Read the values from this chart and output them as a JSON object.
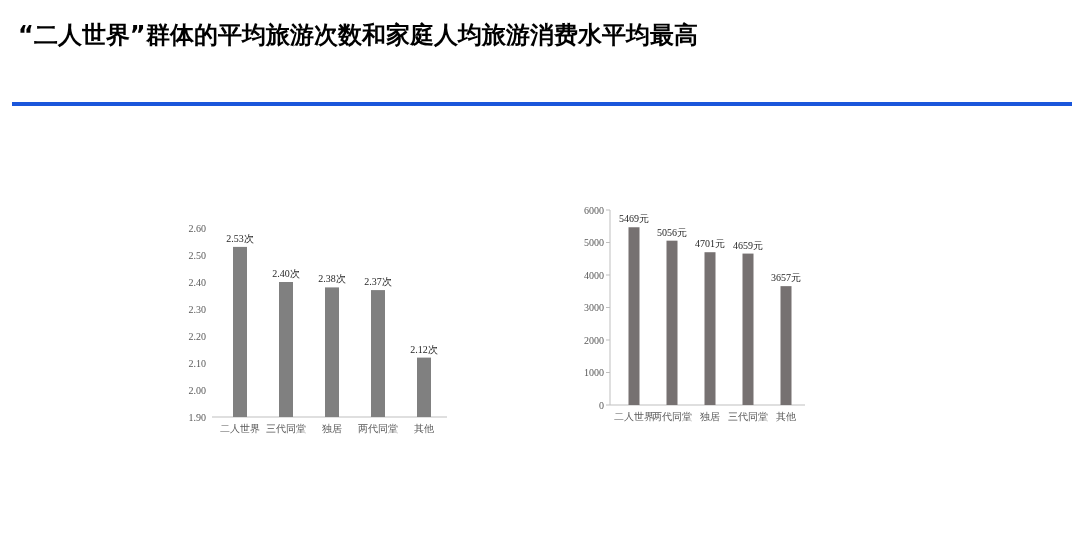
{
  "chart_data": [
    {
      "type": "bar",
      "title": "“二人世界”群体的平均旅游次数和家庭人均旅游消费水平均最高",
      "categories": [
        "二人世界",
        "三代同堂",
        "独居",
        "两代同堂",
        "其他"
      ],
      "values": [
        2.53,
        2.4,
        2.38,
        2.37,
        2.12
      ],
      "value_labels": [
        "2.53次",
        "2.40次",
        "2.38次",
        "2.37次",
        "2.12次"
      ],
      "color": "#808080",
      "ylim": [
        1.9,
        2.6
      ],
      "yticks": [
        {
          "value": 1.9,
          "label": "1.90"
        },
        {
          "value": 2.0,
          "label": "2.00"
        },
        {
          "value": 2.1,
          "label": "2.10"
        },
        {
          "value": 2.2,
          "label": "2.20"
        },
        {
          "value": 2.3,
          "label": "2.30"
        },
        {
          "value": 2.4,
          "label": "2.40"
        },
        {
          "value": 2.5,
          "label": "2.50"
        },
        {
          "value": 2.6,
          "label": "2.60"
        }
      ]
    },
    {
      "type": "bar",
      "categories": [
        "二人世界",
        "两代同堂",
        "独居",
        "三代同堂",
        "其他"
      ],
      "values": [
        5469,
        5056,
        4701,
        4659,
        3657
      ],
      "value_labels": [
        "5469元",
        "5056元",
        "4701元",
        "4659元",
        "3657元"
      ],
      "color": "#767171",
      "ylim": [
        0,
        6000
      ],
      "yticks": [
        0,
        1000,
        2000,
        3000,
        4000,
        5000,
        6000
      ]
    }
  ]
}
